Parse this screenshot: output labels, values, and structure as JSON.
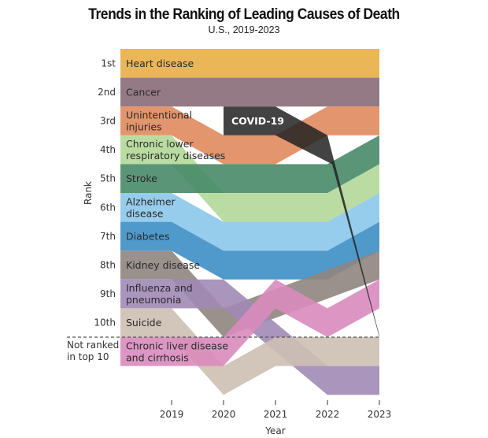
{
  "chart_data": {
    "type": "bump",
    "title": "Trends in the Ranking of Leading Causes of Death",
    "subtitle": "U.S., 2019-2023",
    "xlabel": "Year",
    "ylabel": "Rank",
    "years": [
      2019,
      2020,
      2021,
      2022,
      2023
    ],
    "rank_labels": [
      "1st",
      "2nd",
      "3rd",
      "4th",
      "5th",
      "6th",
      "7th",
      "8th",
      "9th",
      "10th"
    ],
    "not_ranked_label": [
      "Not ranked",
      "in top 10"
    ],
    "series": [
      {
        "name": [
          "Heart disease"
        ],
        "color": "#ebb658",
        "points": [
          [
            2019,
            1
          ],
          [
            2020,
            1
          ],
          [
            2021,
            1
          ],
          [
            2022,
            1
          ],
          [
            2023,
            1
          ]
        ]
      },
      {
        "name": [
          "Cancer"
        ],
        "color": "#937a84",
        "points": [
          [
            2019,
            2
          ],
          [
            2020,
            2
          ],
          [
            2021,
            2
          ],
          [
            2022,
            2
          ],
          [
            2023,
            2
          ]
        ]
      },
      {
        "name": [
          "Unintentional",
          "injuries"
        ],
        "color": "#e0895d",
        "points": [
          [
            2019,
            3
          ],
          [
            2020,
            4
          ],
          [
            2021,
            4
          ],
          [
            2022,
            3
          ],
          [
            2023,
            3
          ]
        ]
      },
      {
        "name": [
          "Chronic lower",
          "respiratory diseases"
        ],
        "color": "#b3d898",
        "points": [
          [
            2019,
            4
          ],
          [
            2020,
            6
          ],
          [
            2021,
            6
          ],
          [
            2022,
            6
          ],
          [
            2023,
            5
          ]
        ]
      },
      {
        "name": [
          "Stroke"
        ],
        "color": "#488a68",
        "points": [
          [
            2019,
            5
          ],
          [
            2020,
            5
          ],
          [
            2021,
            5
          ],
          [
            2022,
            5
          ],
          [
            2023,
            4
          ]
        ]
      },
      {
        "name": [
          "Alzheimer",
          "disease"
        ],
        "color": "#8bc7ea",
        "points": [
          [
            2019,
            6
          ],
          [
            2020,
            7
          ],
          [
            2021,
            7
          ],
          [
            2022,
            7
          ],
          [
            2023,
            6
          ]
        ]
      },
      {
        "name": [
          "Diabetes"
        ],
        "color": "#3c8ec5",
        "points": [
          [
            2019,
            7
          ],
          [
            2020,
            8
          ],
          [
            2021,
            8
          ],
          [
            2022,
            8
          ],
          [
            2023,
            7
          ]
        ]
      },
      {
        "name": [
          "Kidney disease"
        ],
        "color": "#8f857f",
        "points": [
          [
            2019,
            8
          ],
          [
            2020,
            10
          ],
          [
            2023,
            8
          ]
        ]
      },
      {
        "name": [
          "Influenza and",
          "pneumonia"
        ],
        "color": "#a18ab6",
        "points": [
          [
            2019,
            9
          ],
          [
            2020,
            9
          ],
          [
            2022,
            12
          ],
          [
            2023,
            12
          ]
        ]
      },
      {
        "name": [
          "Suicide"
        ],
        "color": "#cdbfb2",
        "points": [
          [
            2019,
            10
          ],
          [
            2020,
            12
          ],
          [
            2021,
            11
          ],
          [
            2022,
            11
          ],
          [
            2023,
            11
          ]
        ]
      },
      {
        "name": [
          "Chronic liver disease",
          "and cirrhosis"
        ],
        "color": "#d98bbd",
        "points": [
          [
            2019,
            11
          ],
          [
            2020,
            11
          ],
          [
            2021,
            9
          ],
          [
            2022,
            10
          ],
          [
            2023,
            9
          ]
        ]
      },
      {
        "name": [
          "COVID-19"
        ],
        "color": "#222222",
        "points": [
          [
            2020,
            3
          ],
          [
            2021,
            3
          ],
          [
            2022,
            4
          ],
          [
            2023,
            10
          ]
        ]
      }
    ]
  }
}
